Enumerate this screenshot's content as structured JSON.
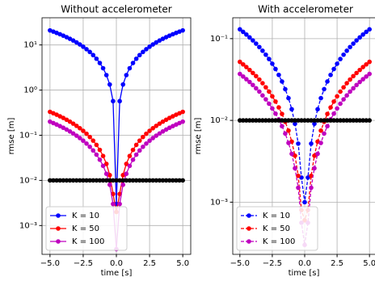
{
  "chart_data": [
    {
      "type": "line",
      "title": "Without accelerometer",
      "xlabel": "time [s]",
      "ylabel": "rmse [m]",
      "log_y": true,
      "grid": true,
      "legend": "lower left",
      "x": [
        -5,
        -4.75,
        -4.5,
        -4.25,
        -4,
        -3.75,
        -3.5,
        -3.25,
        -3,
        -2.75,
        -2.5,
        -2.25,
        -2,
        -1.75,
        -1.5,
        -1.25,
        -1,
        -0.75,
        -0.5,
        -0.25,
        0,
        0.25,
        0.5,
        0.75,
        1,
        1.25,
        1.5,
        1.75,
        2,
        2.25,
        2.5,
        2.75,
        3,
        3.25,
        3.5,
        3.75,
        4,
        4.25,
        4.5,
        4.75,
        5
      ],
      "xlim": [
        -5.6,
        5.6
      ],
      "xticks": [
        {
          "value": -5,
          "label": "−5.0"
        },
        {
          "value": -2.5,
          "label": "−2.5"
        },
        {
          "value": 0,
          "label": "0.0"
        },
        {
          "value": 2.5,
          "label": "2.5"
        },
        {
          "value": 5,
          "label": "5.0"
        }
      ],
      "ylim": [
        0.00023,
        40
      ],
      "yticks": [
        {
          "value": 0.001,
          "label": "10⁻³"
        },
        {
          "value": 0.01,
          "label": "10⁻²"
        },
        {
          "value": 0.1,
          "label": "10⁻¹"
        },
        {
          "value": 1,
          "label": "10⁰"
        },
        {
          "value": 10,
          "label": "10¹"
        }
      ],
      "series": [
        {
          "name": "K = 10",
          "color": "#0000ff",
          "linestyle": "solid",
          "values": [
            21,
            19.75,
            18.5,
            17.28,
            16.07,
            14.87,
            13.69,
            12.53,
            11.38,
            10.25,
            9.14,
            8.05,
            6.99,
            5.96,
            4.95,
            3.98,
            3.05,
            2.15,
            1.33,
            0.57,
            0.003,
            0.57,
            1.33,
            2.15,
            3.05,
            3.98,
            4.95,
            5.96,
            6.99,
            8.05,
            9.14,
            10.25,
            11.38,
            12.53,
            13.69,
            14.87,
            16.07,
            17.28,
            18.5,
            19.75,
            21
          ]
        },
        {
          "name": "K = 50",
          "color": "#ff0000",
          "linestyle": "solid",
          "values": [
            0.33,
            0.3071,
            0.2848,
            0.2627,
            0.2415,
            0.2206,
            0.2003,
            0.1806,
            0.1614,
            0.1429,
            0.125,
            0.1079,
            0.0915,
            0.0759,
            0.0611,
            0.0474,
            0.0347,
            0.0232,
            0.0131,
            0.005,
            0.002,
            0.005,
            0.0131,
            0.0232,
            0.0347,
            0.0474,
            0.0611,
            0.0759,
            0.0915,
            0.1079,
            0.125,
            0.1429,
            0.1614,
            0.1806,
            0.2003,
            0.2206,
            0.2415,
            0.2627,
            0.2848,
            0.3071,
            0.33
          ]
        },
        {
          "name": "K = 100",
          "color": "#bf00bf",
          "linestyle": "solid",
          "values": [
            0.2,
            0.1861,
            0.1726,
            0.1592,
            0.1464,
            0.1337,
            0.1214,
            0.1094,
            0.0978,
            0.0866,
            0.0758,
            0.0654,
            0.0554,
            0.046,
            0.0371,
            0.0287,
            0.021,
            0.014,
            0.008,
            0.003,
            0.0003,
            0.003,
            0.008,
            0.014,
            0.021,
            0.0287,
            0.0371,
            0.046,
            0.0554,
            0.0654,
            0.0758,
            0.0866,
            0.0978,
            0.1094,
            0.1214,
            0.1337,
            0.1464,
            0.1592,
            0.1726,
            0.1861,
            0.2
          ]
        },
        {
          "color": "#000000",
          "linestyle": "solid",
          "values": [
            0.01,
            0.01,
            0.01,
            0.01,
            0.01,
            0.01,
            0.01,
            0.01,
            0.01,
            0.01,
            0.01,
            0.01,
            0.01,
            0.01,
            0.01,
            0.01,
            0.01,
            0.01,
            0.01,
            0.01,
            0.01,
            0.01,
            0.01,
            0.01,
            0.01,
            0.01,
            0.01,
            0.01,
            0.01,
            0.01,
            0.01,
            0.01,
            0.01,
            0.01,
            0.01,
            0.01,
            0.01,
            0.01,
            0.01,
            0.01,
            0.01
          ]
        }
      ]
    },
    {
      "type": "line",
      "title": "With accelerometer",
      "xlabel": "time [s]",
      "ylabel": "rmse [m]",
      "log_y": true,
      "grid": true,
      "legend": "lower left",
      "x": [
        -5,
        -4.75,
        -4.5,
        -4.25,
        -4,
        -3.75,
        -3.5,
        -3.25,
        -3,
        -2.75,
        -2.5,
        -2.25,
        -2,
        -1.75,
        -1.5,
        -1.25,
        -1,
        -0.75,
        -0.5,
        -0.25,
        0,
        0.25,
        0.5,
        0.75,
        1,
        1.25,
        1.5,
        1.75,
        2,
        2.25,
        2.5,
        2.75,
        3,
        3.25,
        3.5,
        3.75,
        4,
        4.25,
        4.5,
        4.75,
        5
      ],
      "xlim": [
        -5.55,
        5.55
      ],
      "xticks": [
        {
          "value": -5,
          "label": "−5.0"
        },
        {
          "value": -2.5,
          "label": "−2.5"
        },
        {
          "value": 0,
          "label": "0.0"
        },
        {
          "value": 2.5,
          "label": "2.5"
        },
        {
          "value": 5,
          "label": "5.0"
        }
      ],
      "ylim": [
        0.00023,
        0.18
      ],
      "yticks": [
        {
          "value": 0.001,
          "label": "10⁻³"
        },
        {
          "value": 0.01,
          "label": "10⁻²"
        },
        {
          "value": 0.1,
          "label": "10⁻¹"
        }
      ],
      "series": [
        {
          "name": "K = 10",
          "color": "#0000ff",
          "linestyle": "dashed",
          "values": [
            0.13,
            0.121,
            0.1122,
            0.1035,
            0.0951,
            0.0869,
            0.0789,
            0.0711,
            0.0636,
            0.0563,
            0.0493,
            0.0425,
            0.036,
            0.0299,
            0.0241,
            0.0187,
            0.0137,
            0.0091,
            0.0052,
            0.002,
            0.001,
            0.002,
            0.0052,
            0.0091,
            0.0137,
            0.0187,
            0.0241,
            0.0299,
            0.036,
            0.0425,
            0.0493,
            0.0563,
            0.0636,
            0.0711,
            0.0789,
            0.0869,
            0.0951,
            0.1035,
            0.1122,
            0.121,
            0.13
          ]
        },
        {
          "name": "K = 50",
          "color": "#ff0000",
          "linestyle": "dashed",
          "values": [
            0.052,
            0.0484,
            0.0449,
            0.0414,
            0.038,
            0.0348,
            0.0316,
            0.0285,
            0.0254,
            0.0225,
            0.0197,
            0.017,
            0.0144,
            0.012,
            0.0096,
            0.0075,
            0.0055,
            0.0037,
            0.0021,
            0.0008,
            0.0006,
            0.0008,
            0.0021,
            0.0037,
            0.0055,
            0.0075,
            0.0096,
            0.012,
            0.0144,
            0.017,
            0.0197,
            0.0225,
            0.0254,
            0.0285,
            0.0316,
            0.0348,
            0.038,
            0.0414,
            0.0449,
            0.0484,
            0.052
          ]
        },
        {
          "name": "K = 100",
          "color": "#bf00bf",
          "linestyle": "dashed",
          "values": [
            0.037,
            0.0344,
            0.0319,
            0.0295,
            0.0271,
            0.0247,
            0.0225,
            0.0202,
            0.0181,
            0.016,
            0.014,
            0.0121,
            0.0103,
            0.0085,
            0.0069,
            0.0053,
            0.0039,
            0.0026,
            0.0015,
            0.00056,
            0.0003,
            0.00056,
            0.0015,
            0.0026,
            0.0039,
            0.0053,
            0.0069,
            0.0085,
            0.0103,
            0.0121,
            0.014,
            0.016,
            0.0181,
            0.0202,
            0.0225,
            0.0247,
            0.0271,
            0.0295,
            0.0319,
            0.0344,
            0.037
          ]
        },
        {
          "color": "#000000",
          "linestyle": "solid",
          "values": [
            0.01,
            0.01,
            0.01,
            0.01,
            0.01,
            0.01,
            0.01,
            0.01,
            0.01,
            0.01,
            0.01,
            0.01,
            0.01,
            0.01,
            0.01,
            0.01,
            0.01,
            0.01,
            0.01,
            0.01,
            0.01,
            0.01,
            0.01,
            0.01,
            0.01,
            0.01,
            0.01,
            0.01,
            0.01,
            0.01,
            0.01,
            0.01,
            0.01,
            0.01,
            0.01,
            0.01,
            0.01,
            0.01,
            0.01,
            0.01,
            0.01
          ]
        }
      ]
    }
  ]
}
